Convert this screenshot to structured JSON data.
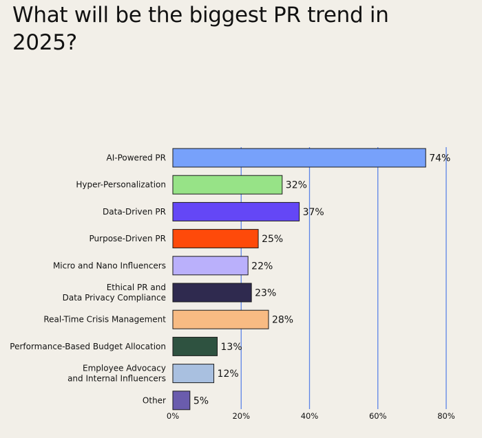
{
  "title": "What will be the biggest PR trend in 2025?",
  "chart_data": {
    "type": "bar",
    "orientation": "horizontal",
    "title": "What will be the biggest PR trend in 2025?",
    "categories": [
      [
        "AI-Powered PR"
      ],
      [
        "Hyper-Personalization"
      ],
      [
        "Data-Driven PR"
      ],
      [
        "Purpose-Driven PR"
      ],
      [
        "Micro and Nano Influencers"
      ],
      [
        "Ethical PR and",
        "Data Privacy Compliance"
      ],
      [
        "Real-Time Crisis Management"
      ],
      [
        "Performance-Based Budget Allocation"
      ],
      [
        "Employee Advocacy",
        "and Internal Influencers"
      ],
      [
        "Other"
      ]
    ],
    "values": [
      74,
      32,
      37,
      25,
      22,
      23,
      28,
      13,
      12,
      5
    ],
    "value_labels": [
      "74%",
      "32%",
      "37%",
      "25%",
      "22%",
      "23%",
      "28%",
      "13%",
      "12%",
      "5%"
    ],
    "colors": [
      "#77a1fb",
      "#97e387",
      "#6447f6",
      "#fe4a0a",
      "#bab0fb",
      "#2f2a4f",
      "#f8bb83",
      "#2e5240",
      "#a9c0e0",
      "#6a5cad"
    ],
    "xlim": [
      0,
      80
    ],
    "xticks": [
      0,
      20,
      40,
      60,
      80
    ],
    "xtick_labels": [
      "0%",
      "20%",
      "40%",
      "60%",
      "80%"
    ],
    "grid": true,
    "grid_color": "#5b83e6",
    "bar_outline": "#1a1a1a"
  }
}
